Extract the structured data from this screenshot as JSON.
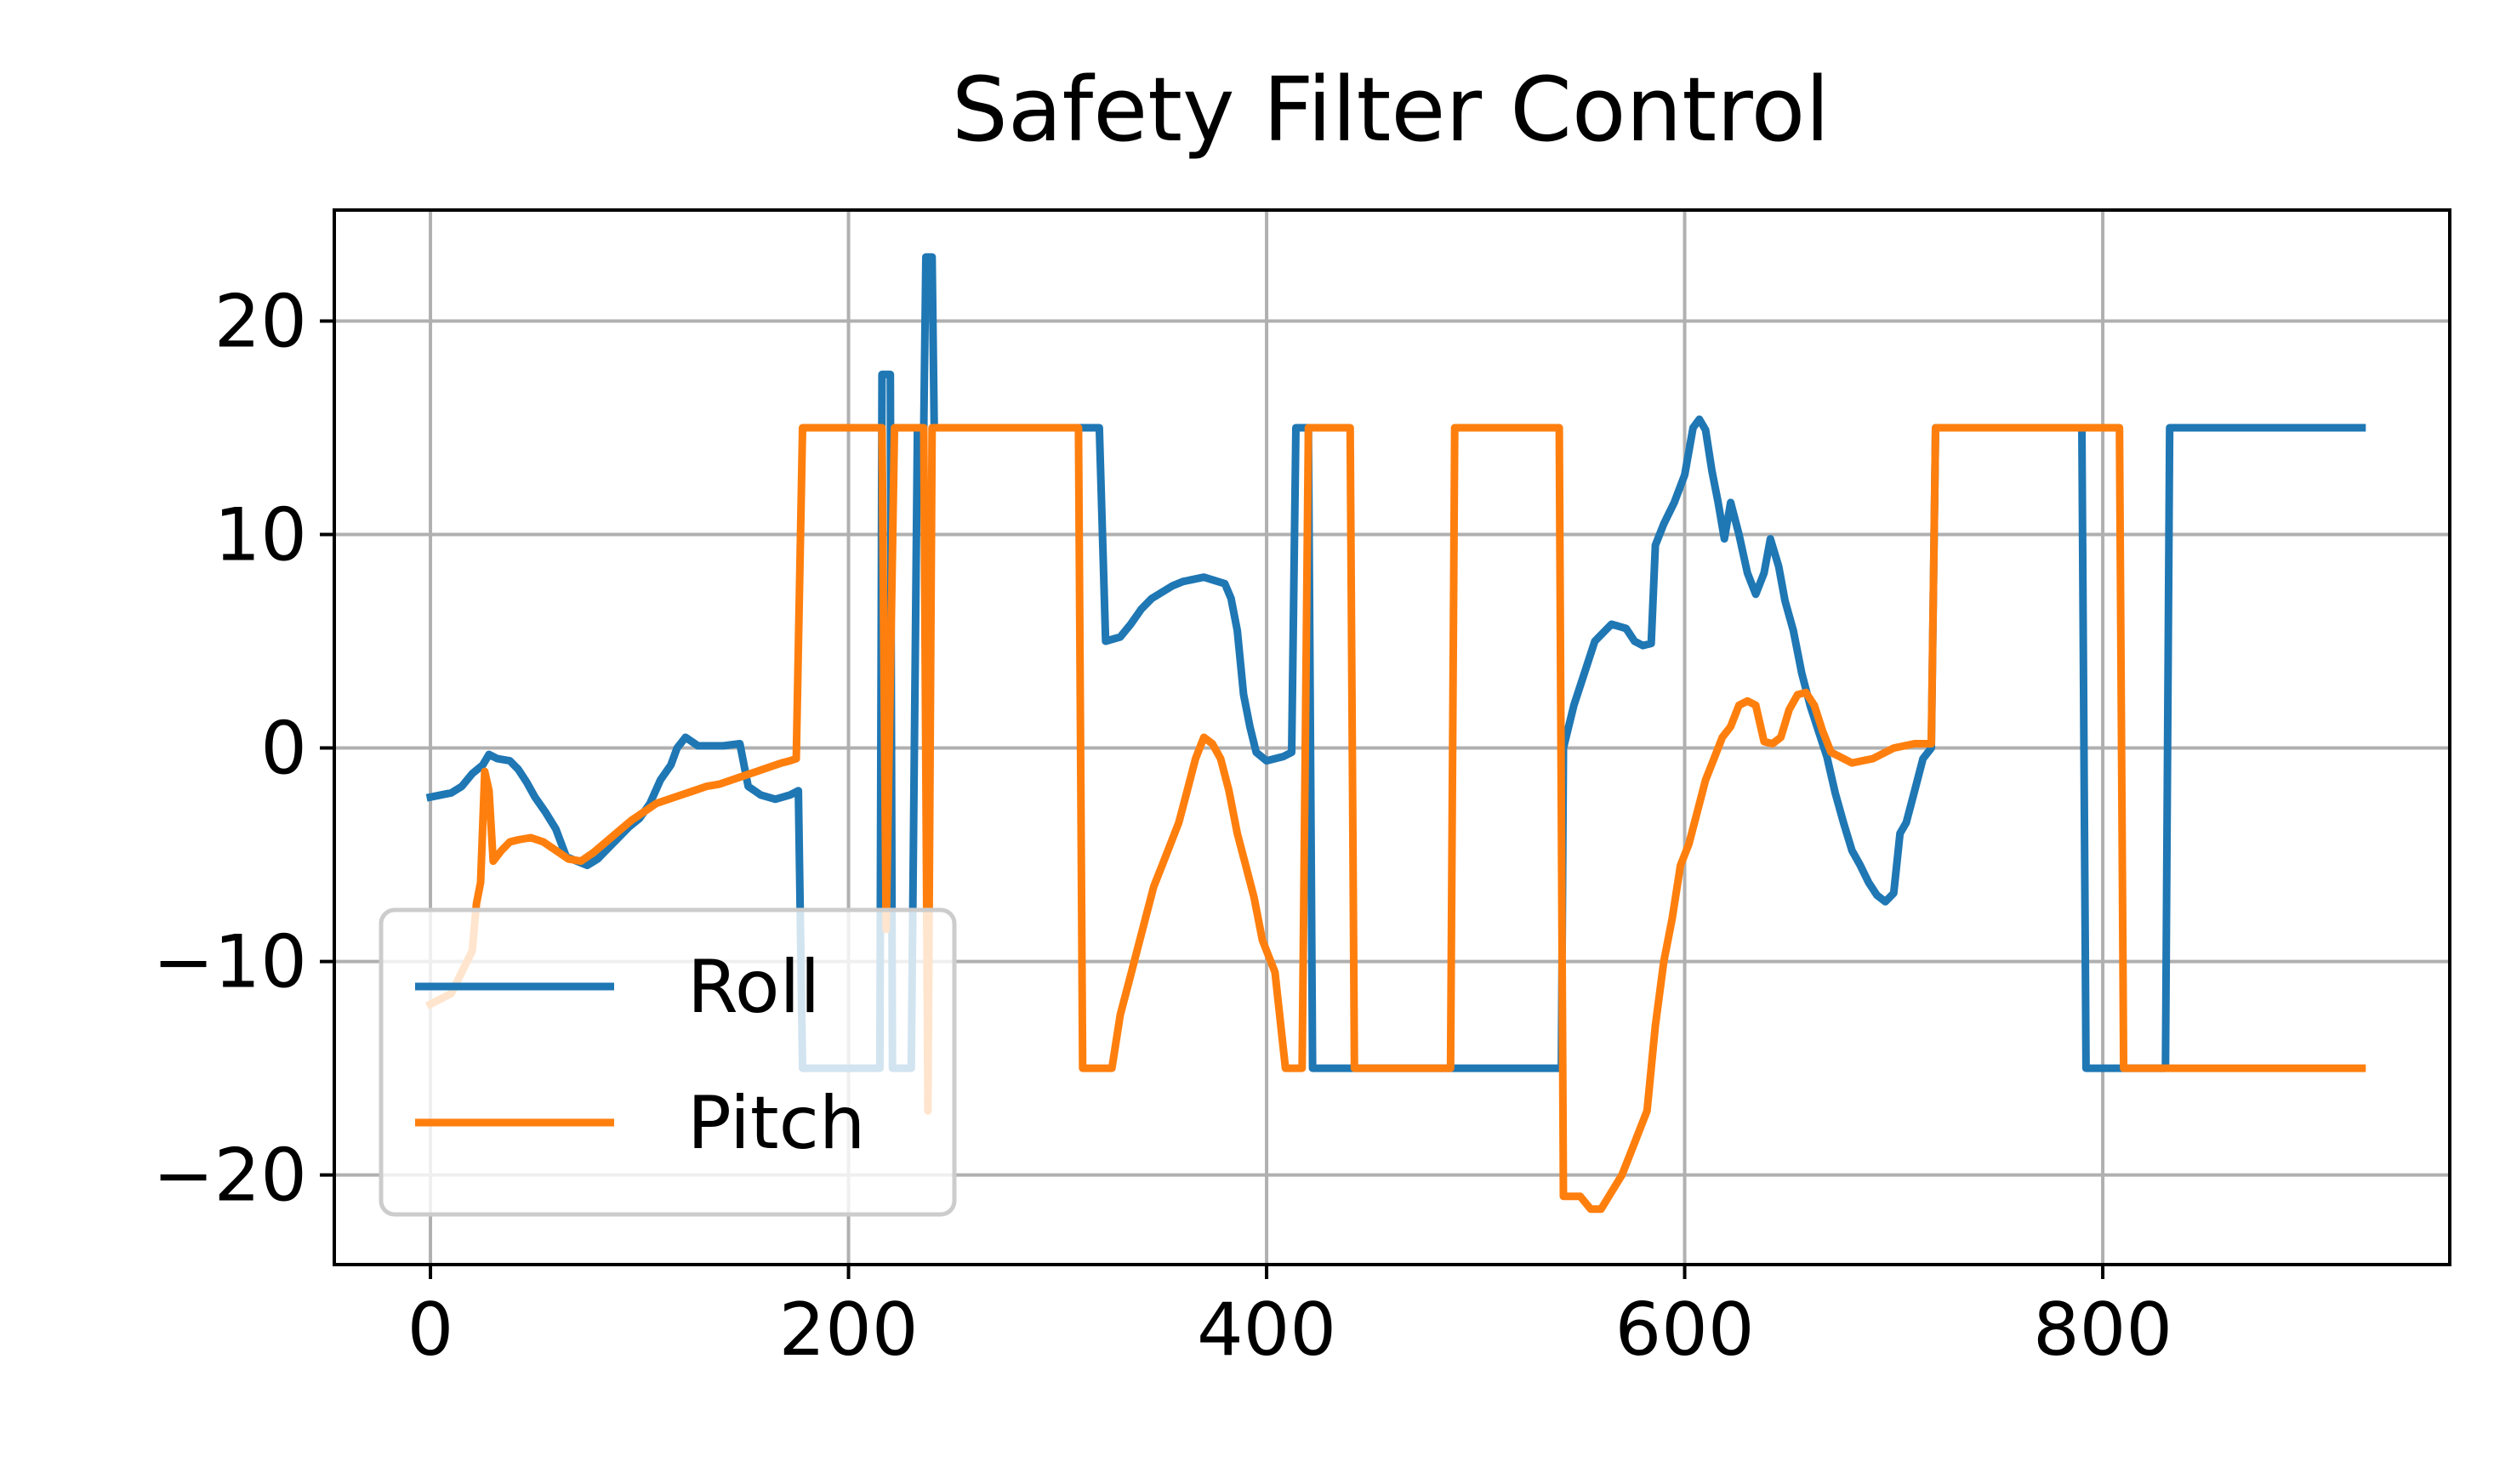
{
  "chart_data": {
    "type": "line",
    "title": "Safety Filter Control",
    "xlabel": "",
    "ylabel": "",
    "xlim": [
      -46,
      966
    ],
    "ylim": [
      -24.2,
      25.2
    ],
    "grid": true,
    "x_ticks": [
      0,
      200,
      400,
      600,
      800
    ],
    "x_tick_labels": [
      "0",
      "200",
      "400",
      "600",
      "800"
    ],
    "y_ticks": [
      -20,
      -10,
      0,
      10,
      20
    ],
    "y_tick_labels": [
      "−20",
      "−10",
      "0",
      "10",
      "20"
    ],
    "legend": {
      "placement": "lower-left",
      "entries": [
        "Roll",
        "Pitch"
      ]
    },
    "series": [
      {
        "name": "Roll",
        "color": "#1f77b4",
        "points": [
          [
            0,
            -2.3
          ],
          [
            10,
            -2.1
          ],
          [
            15,
            -1.8
          ],
          [
            20,
            -1.2
          ],
          [
            25,
            -0.8
          ],
          [
            28,
            -0.3
          ],
          [
            32,
            -0.5
          ],
          [
            38,
            -0.6
          ],
          [
            42,
            -1.0
          ],
          [
            46,
            -1.6
          ],
          [
            50,
            -2.3
          ],
          [
            55,
            -3.0
          ],
          [
            60,
            -3.8
          ],
          [
            65,
            -5.1
          ],
          [
            70,
            -5.3
          ],
          [
            75,
            -5.5
          ],
          [
            80,
            -5.2
          ],
          [
            85,
            -4.7
          ],
          [
            90,
            -4.2
          ],
          [
            95,
            -3.7
          ],
          [
            100,
            -3.3
          ],
          [
            105,
            -2.6
          ],
          [
            110,
            -1.5
          ],
          [
            115,
            -0.8
          ],
          [
            118,
            0.0
          ],
          [
            122,
            0.5
          ],
          [
            128,
            0.1
          ],
          [
            140,
            0.1
          ],
          [
            148,
            0.2
          ],
          [
            152,
            -1.8
          ],
          [
            158,
            -2.2
          ],
          [
            165,
            -2.4
          ],
          [
            172,
            -2.2
          ],
          [
            176,
            -2.0
          ],
          [
            178,
            -15.0
          ],
          [
            205,
            -15.0
          ],
          [
            215,
            -15.0
          ],
          [
            216,
            17.5
          ],
          [
            220,
            17.5
          ],
          [
            221,
            -15.0
          ],
          [
            225,
            -15.0
          ],
          [
            230,
            -15.0
          ],
          [
            233,
            15.0
          ],
          [
            236,
            15.0
          ],
          [
            237,
            23.0
          ],
          [
            240,
            23.0
          ],
          [
            241,
            15.0
          ],
          [
            320,
            15.0
          ],
          [
            323,
            5.0
          ],
          [
            330,
            5.2
          ],
          [
            335,
            5.8
          ],
          [
            340,
            6.5
          ],
          [
            345,
            7.0
          ],
          [
            350,
            7.3
          ],
          [
            355,
            7.6
          ],
          [
            360,
            7.8
          ],
          [
            370,
            8.0
          ],
          [
            380,
            7.7
          ],
          [
            383,
            7.0
          ],
          [
            386,
            5.5
          ],
          [
            389,
            2.5
          ],
          [
            392,
            1.0
          ],
          [
            395,
            -0.2
          ],
          [
            400,
            -0.6
          ],
          [
            408,
            -0.4
          ],
          [
            412,
            -0.2
          ],
          [
            414,
            15.0
          ],
          [
            420,
            15.0
          ],
          [
            422,
            -15.0
          ],
          [
            480,
            -15.0
          ],
          [
            541,
            -15.0
          ],
          [
            542,
            0.0
          ],
          [
            547,
            2.0
          ],
          [
            552,
            3.5
          ],
          [
            557,
            5.0
          ],
          [
            565,
            5.8
          ],
          [
            572,
            5.6
          ],
          [
            576,
            5.0
          ],
          [
            580,
            4.8
          ],
          [
            584,
            4.9
          ],
          [
            586,
            9.5
          ],
          [
            590,
            10.5
          ],
          [
            595,
            11.5
          ],
          [
            600,
            12.8
          ],
          [
            604,
            15.0
          ],
          [
            607,
            15.4
          ],
          [
            610,
            14.9
          ],
          [
            613,
            13.0
          ],
          [
            616,
            11.5
          ],
          [
            619,
            9.8
          ],
          [
            622,
            11.5
          ],
          [
            626,
            10.0
          ],
          [
            630,
            8.2
          ],
          [
            634,
            7.2
          ],
          [
            638,
            8.2
          ],
          [
            641,
            9.8
          ],
          [
            645,
            8.5
          ],
          [
            648,
            6.9
          ],
          [
            652,
            5.5
          ],
          [
            656,
            3.5
          ],
          [
            660,
            2.0
          ],
          [
            664,
            0.8
          ],
          [
            668,
            -0.4
          ],
          [
            672,
            -2.1
          ],
          [
            676,
            -3.5
          ],
          [
            680,
            -4.8
          ],
          [
            684,
            -5.5
          ],
          [
            688,
            -6.3
          ],
          [
            692,
            -6.9
          ],
          [
            696,
            -7.2
          ],
          [
            700,
            -6.8
          ],
          [
            703,
            -4.0
          ],
          [
            706,
            -3.5
          ],
          [
            710,
            -2.0
          ],
          [
            714,
            -0.5
          ],
          [
            718,
            0.0
          ],
          [
            720,
            15.0
          ],
          [
            790,
            15.0
          ],
          [
            792,
            -15.0
          ],
          [
            800,
            -15.0
          ],
          [
            830,
            -15.0
          ],
          [
            832,
            15.0
          ],
          [
            924,
            15.0
          ]
        ]
      },
      {
        "name": "Pitch",
        "color": "#ff7f0e",
        "points": [
          [
            0,
            -12.0
          ],
          [
            10,
            -11.5
          ],
          [
            15,
            -10.5
          ],
          [
            20,
            -9.5
          ],
          [
            22,
            -7.3
          ],
          [
            24,
            -6.3
          ],
          [
            26,
            -1.1
          ],
          [
            28,
            -2.0
          ],
          [
            30,
            -5.3
          ],
          [
            34,
            -4.8
          ],
          [
            38,
            -4.4
          ],
          [
            42,
            -4.3
          ],
          [
            48,
            -4.2
          ],
          [
            54,
            -4.4
          ],
          [
            60,
            -4.8
          ],
          [
            66,
            -5.2
          ],
          [
            72,
            -5.3
          ],
          [
            78,
            -4.9
          ],
          [
            84,
            -4.4
          ],
          [
            90,
            -3.9
          ],
          [
            96,
            -3.4
          ],
          [
            102,
            -3.0
          ],
          [
            108,
            -2.6
          ],
          [
            114,
            -2.4
          ],
          [
            120,
            -2.2
          ],
          [
            126,
            -2.0
          ],
          [
            132,
            -1.8
          ],
          [
            138,
            -1.7
          ],
          [
            144,
            -1.5
          ],
          [
            150,
            -1.3
          ],
          [
            156,
            -1.1
          ],
          [
            162,
            -0.9
          ],
          [
            168,
            -0.7
          ],
          [
            172,
            -0.6
          ],
          [
            175,
            -0.5
          ],
          [
            178,
            15.0
          ],
          [
            216,
            15.0
          ],
          [
            218,
            -8.5
          ],
          [
            222,
            15.0
          ],
          [
            236,
            15.0
          ],
          [
            238,
            -17.0
          ],
          [
            240,
            15.0
          ],
          [
            310,
            15.0
          ],
          [
            312,
            -15.0
          ],
          [
            326,
            -15.0
          ],
          [
            330,
            -12.5
          ],
          [
            334,
            -11.0
          ],
          [
            338,
            -9.5
          ],
          [
            342,
            -8.0
          ],
          [
            346,
            -6.5
          ],
          [
            350,
            -5.5
          ],
          [
            354,
            -4.5
          ],
          [
            358,
            -3.5
          ],
          [
            362,
            -2.0
          ],
          [
            366,
            -0.5
          ],
          [
            370,
            0.5
          ],
          [
            374,
            0.2
          ],
          [
            378,
            -0.5
          ],
          [
            382,
            -2.0
          ],
          [
            386,
            -4.0
          ],
          [
            390,
            -5.5
          ],
          [
            394,
            -7.0
          ],
          [
            398,
            -9.0
          ],
          [
            404,
            -10.5
          ],
          [
            409,
            -15.0
          ],
          [
            417,
            -15.0
          ],
          [
            420,
            15.0
          ],
          [
            440,
            15.0
          ],
          [
            442,
            -15.0
          ],
          [
            488,
            -15.0
          ],
          [
            490,
            15.0
          ],
          [
            540,
            15.0
          ],
          [
            542,
            -21.0
          ],
          [
            550,
            -21.0
          ],
          [
            555,
            -21.6
          ],
          [
            560,
            -21.6
          ],
          [
            565,
            -20.8
          ],
          [
            570,
            -20.0
          ],
          [
            574,
            -19.0
          ],
          [
            578,
            -18.0
          ],
          [
            582,
            -17.0
          ],
          [
            586,
            -13.0
          ],
          [
            590,
            -10.0
          ],
          [
            594,
            -8.0
          ],
          [
            598,
            -5.5
          ],
          [
            602,
            -4.5
          ],
          [
            606,
            -3.0
          ],
          [
            610,
            -1.5
          ],
          [
            614,
            -0.5
          ],
          [
            618,
            0.5
          ],
          [
            622,
            1.0
          ],
          [
            626,
            2.0
          ],
          [
            630,
            2.2
          ],
          [
            634,
            2.0
          ],
          [
            638,
            0.3
          ],
          [
            642,
            0.2
          ],
          [
            646,
            0.5
          ],
          [
            650,
            1.8
          ],
          [
            654,
            2.5
          ],
          [
            658,
            2.6
          ],
          [
            662,
            2.0
          ],
          [
            666,
            0.8
          ],
          [
            670,
            -0.2
          ],
          [
            680,
            -0.7
          ],
          [
            690,
            -0.5
          ],
          [
            700,
            0.0
          ],
          [
            710,
            0.2
          ],
          [
            718,
            0.2
          ],
          [
            720,
            15.0
          ],
          [
            808,
            15.0
          ],
          [
            810,
            -15.0
          ],
          [
            924,
            -15.0
          ]
        ]
      }
    ]
  }
}
